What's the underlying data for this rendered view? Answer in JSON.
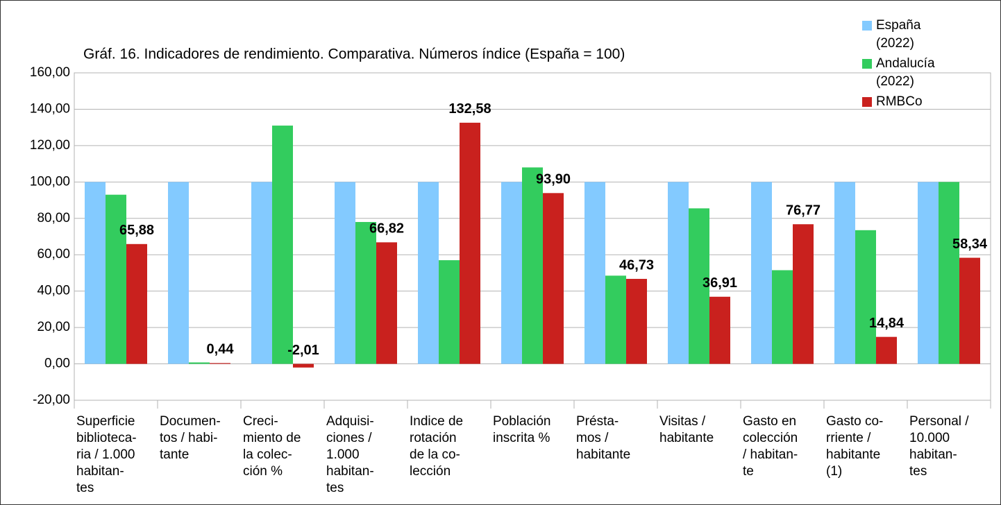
{
  "chart_data": {
    "type": "bar",
    "title": "Gráf. 16. Indicadores de rendimiento. Comparativa. Números índice (España = 100)",
    "categories": [
      "Superficie\nbiblioteca-\nria / 1.000\nhabitan-\ntes",
      "Documen-\ntos / habi-\ntante",
      "Creci-\nmiento de\nla colec-\nción %",
      "Adquisi-\nciones /\n1.000\nhabitan-\ntes",
      "Indice de\nrotación\nde la co-\nlección",
      "Población\ninscrita %",
      "Présta-\nmos /\nhabitante",
      "Visitas /\nhabitante",
      "Gasto en\ncolección\n/ habitan-\nte",
      "Gasto co-\nrriente /\nhabitante\n(1)",
      "Personal /\n10.000\nhabitan-\ntes"
    ],
    "series": [
      {
        "name": "España\n(2022)",
        "color": "#83caff",
        "values": [
          100,
          100,
          100,
          100,
          100,
          100,
          100,
          100,
          100,
          100,
          100
        ]
      },
      {
        "name": "Andalucía\n(2022)",
        "color": "#33cc5e",
        "values": [
          93,
          0.8,
          131,
          78,
          57,
          108,
          48.5,
          85.5,
          51.5,
          73.5,
          100
        ]
      },
      {
        "name": "RMBCo",
        "color": "#c9211e",
        "values": [
          65.88,
          0.44,
          -2.01,
          66.82,
          132.58,
          93.9,
          46.73,
          36.91,
          76.77,
          14.84,
          58.34
        ],
        "value_labels": [
          "65,88",
          "0,44",
          "-2,01",
          "66,82",
          "132,58",
          "93,90",
          "46,73",
          "36,91",
          "76,77",
          "14,84",
          "58,34"
        ]
      }
    ],
    "ylim": [
      -20,
      160
    ],
    "yticks": [
      {
        "value": -20,
        "label": "-20,00"
      },
      {
        "value": 0,
        "label": "0,00"
      },
      {
        "value": 20,
        "label": "20,00"
      },
      {
        "value": 40,
        "label": "40,00"
      },
      {
        "value": 60,
        "label": "60,00"
      },
      {
        "value": 80,
        "label": "80,00"
      },
      {
        "value": 100,
        "label": "100,00"
      },
      {
        "value": 120,
        "label": "120,00"
      },
      {
        "value": 140,
        "label": "140,00"
      },
      {
        "value": 160,
        "label": "160,00"
      }
    ],
    "grid": true,
    "legend": "top-right"
  }
}
